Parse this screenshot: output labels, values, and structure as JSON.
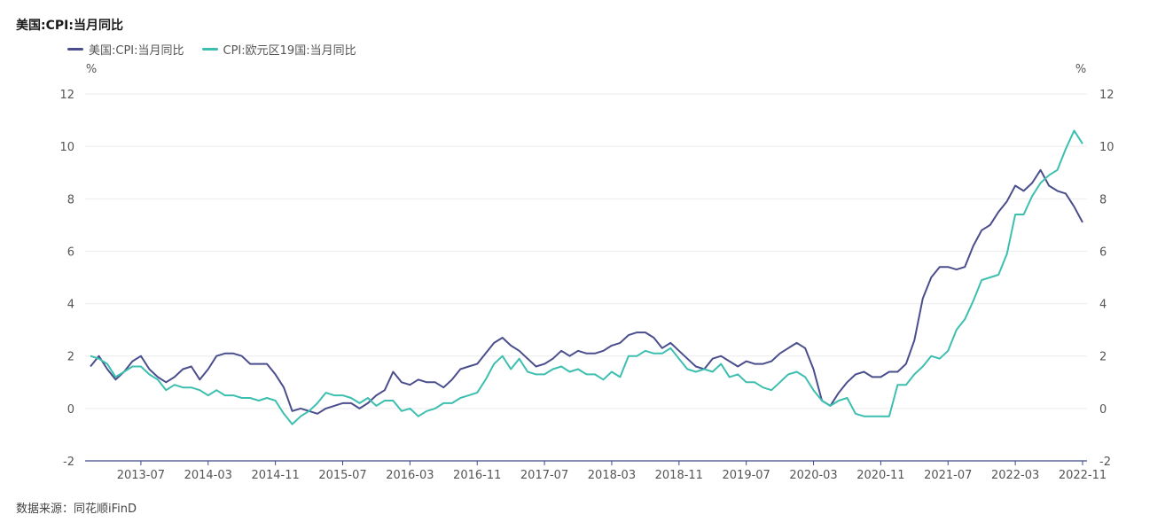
{
  "title": "美国:CPI:当月同比",
  "source": "数据来源：同花顺iFinD",
  "colors": {
    "series_us": "#4a4e8c",
    "series_eu": "#3dbfb0",
    "axis": "#3d4a8a",
    "grid": "#ececec"
  },
  "chart_data": {
    "type": "line",
    "title": "美国:CPI:当月同比",
    "left_unit": "%",
    "right_unit": "%",
    "ylim": [
      -2,
      12
    ],
    "yticks": [
      -2,
      0,
      2,
      4,
      6,
      8,
      10,
      12
    ],
    "xlim": [
      "2013-01",
      "2022-11"
    ],
    "xticks": [
      "2013-07",
      "2014-03",
      "2014-11",
      "2015-07",
      "2016-03",
      "2016-11",
      "2017-07",
      "2018-03",
      "2018-11",
      "2019-07",
      "2020-03",
      "2020-11",
      "2021-07",
      "2022-03",
      "2022-11"
    ],
    "grid": true,
    "legend_position": "top-left",
    "series": [
      {
        "name": "美国:CPI:当月同比",
        "color": "#4a4e8c",
        "values": [
          1.6,
          2.0,
          1.5,
          1.1,
          1.4,
          1.8,
          2.0,
          1.5,
          1.2,
          1.0,
          1.2,
          1.5,
          1.6,
          1.1,
          1.5,
          2.0,
          2.1,
          2.1,
          2.0,
          1.7,
          1.7,
          1.7,
          1.3,
          0.8,
          -0.1,
          0.0,
          -0.1,
          -0.2,
          0.0,
          0.1,
          0.2,
          0.2,
          0.0,
          0.2,
          0.5,
          0.7,
          1.4,
          1.0,
          0.9,
          1.1,
          1.0,
          1.0,
          0.8,
          1.1,
          1.5,
          1.6,
          1.7,
          2.1,
          2.5,
          2.7,
          2.4,
          2.2,
          1.9,
          1.6,
          1.7,
          1.9,
          2.2,
          2.0,
          2.2,
          2.1,
          2.1,
          2.2,
          2.4,
          2.5,
          2.8,
          2.9,
          2.9,
          2.7,
          2.3,
          2.5,
          2.2,
          1.9,
          1.6,
          1.5,
          1.9,
          2.0,
          1.8,
          1.6,
          1.8,
          1.7,
          1.7,
          1.8,
          2.1,
          2.3,
          2.5,
          2.3,
          1.5,
          0.3,
          0.1,
          0.6,
          1.0,
          1.3,
          1.4,
          1.2,
          1.2,
          1.4,
          1.4,
          1.7,
          2.6,
          4.2,
          5.0,
          5.4,
          5.4,
          5.3,
          5.4,
          6.2,
          6.8,
          7.0,
          7.5,
          7.9,
          8.5,
          8.3,
          8.6,
          9.1,
          8.5,
          8.3,
          8.2,
          7.7,
          7.1
        ]
      },
      {
        "name": "CPI:欧元区19国:当月同比",
        "color": "#3dbfb0",
        "values": [
          2.0,
          1.9,
          1.7,
          1.2,
          1.4,
          1.6,
          1.6,
          1.3,
          1.1,
          0.7,
          0.9,
          0.8,
          0.8,
          0.7,
          0.5,
          0.7,
          0.5,
          0.5,
          0.4,
          0.4,
          0.3,
          0.4,
          0.3,
          -0.2,
          -0.6,
          -0.3,
          -0.1,
          0.2,
          0.6,
          0.5,
          0.5,
          0.4,
          0.2,
          0.4,
          0.1,
          0.3,
          0.3,
          -0.1,
          0.0,
          -0.3,
          -0.1,
          0.0,
          0.2,
          0.2,
          0.4,
          0.5,
          0.6,
          1.1,
          1.7,
          2.0,
          1.5,
          1.9,
          1.4,
          1.3,
          1.3,
          1.5,
          1.6,
          1.4,
          1.5,
          1.3,
          1.3,
          1.1,
          1.4,
          1.2,
          2.0,
          2.0,
          2.2,
          2.1,
          2.1,
          2.3,
          1.9,
          1.5,
          1.4,
          1.5,
          1.4,
          1.7,
          1.2,
          1.3,
          1.0,
          1.0,
          0.8,
          0.7,
          1.0,
          1.3,
          1.4,
          1.2,
          0.7,
          0.3,
          0.1,
          0.3,
          0.4,
          -0.2,
          -0.3,
          -0.3,
          -0.3,
          -0.3,
          0.9,
          0.9,
          1.3,
          1.6,
          2.0,
          1.9,
          2.2,
          3.0,
          3.4,
          4.1,
          4.9,
          5.0,
          5.1,
          5.9,
          7.4,
          7.4,
          8.1,
          8.6,
          8.9,
          9.1,
          9.9,
          10.6,
          10.1
        ]
      }
    ]
  }
}
